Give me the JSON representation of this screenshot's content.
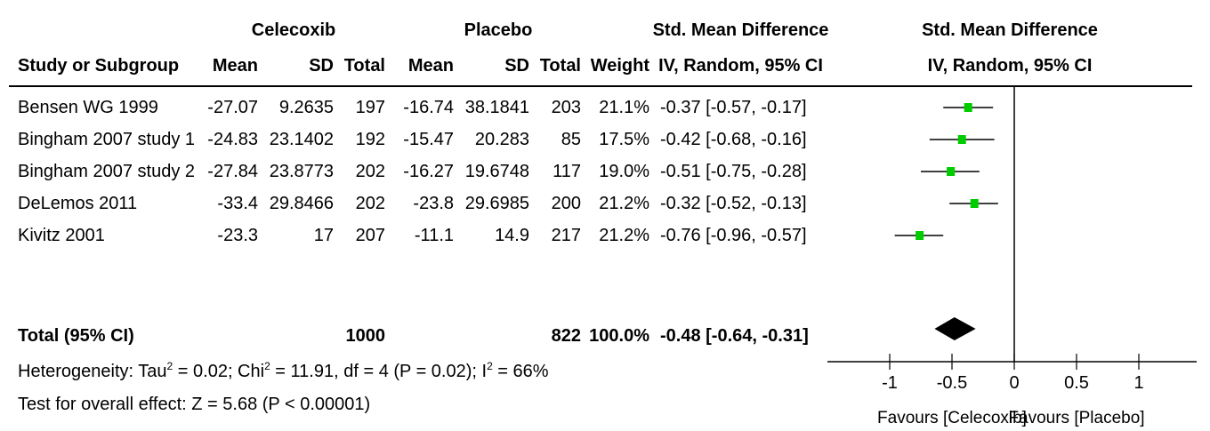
{
  "headers": {
    "group1": "Celecoxib",
    "group2": "Placebo",
    "smd_group": "Std. Mean Difference",
    "study_col": "Study or Subgroup",
    "mean": "Mean",
    "sd": "SD",
    "total": "Total",
    "weight": "Weight",
    "ci_col": "IV, Random, 95% CI",
    "plot_title": "Std. Mean Difference",
    "plot_sub": "IV, Random, 95% CI"
  },
  "studies": [
    {
      "name": "Bensen WG 1999",
      "m1": "-27.07",
      "sd1": "9.2635",
      "n1": "197",
      "m2": "-16.74",
      "sd2": "38.1841",
      "n2": "203",
      "weight": "21.1%",
      "ci": "-0.37 [-0.57, -0.17]"
    },
    {
      "name": "Bingham 2007 study 1",
      "m1": "-24.83",
      "sd1": "23.1402",
      "n1": "192",
      "m2": "-15.47",
      "sd2": "20.283",
      "n2": "85",
      "weight": "17.5%",
      "ci": "-0.42 [-0.68, -0.16]"
    },
    {
      "name": "Bingham 2007 study 2",
      "m1": "-27.84",
      "sd1": "23.8773",
      "n1": "202",
      "m2": "-16.27",
      "sd2": "19.6748",
      "n2": "117",
      "weight": "19.0%",
      "ci": "-0.51 [-0.75, -0.28]"
    },
    {
      "name": "DeLemos 2011",
      "m1": "-33.4",
      "sd1": "29.8466",
      "n1": "202",
      "m2": "-23.8",
      "sd2": "29.6985",
      "n2": "200",
      "weight": "21.2%",
      "ci": "-0.32 [-0.52, -0.13]"
    },
    {
      "name": "Kivitz 2001",
      "m1": "-23.3",
      "sd1": "17",
      "n1": "207",
      "m2": "-11.1",
      "sd2": "14.9",
      "n2": "217",
      "weight": "21.2%",
      "ci": "-0.76 [-0.96, -0.57]"
    }
  ],
  "total": {
    "label": "Total (95% CI)",
    "n1": "1000",
    "n2": "822",
    "weight": "100.0%",
    "ci": "-0.48 [-0.64, -0.31]"
  },
  "footer": {
    "heterogeneity_prefix": "Heterogeneity: Tau",
    "tau_sup": "2",
    "heterogeneity_mid": " = 0.02; Chi",
    "chi_sup": "2",
    "heterogeneity_mid2": " = 11.91, df = 4 (P = 0.02); I",
    "i_sup": "2",
    "heterogeneity_end": " = 66%",
    "overall": "Test for overall effect: Z = 5.68 (P < 0.00001)"
  },
  "chart_data": {
    "type": "scatter",
    "estimates": [
      {
        "est": -0.37,
        "lo": -0.57,
        "hi": -0.17
      },
      {
        "est": -0.42,
        "lo": -0.68,
        "hi": -0.16
      },
      {
        "est": -0.51,
        "lo": -0.75,
        "hi": -0.28
      },
      {
        "est": -0.32,
        "lo": -0.52,
        "hi": -0.13
      },
      {
        "est": -0.76,
        "lo": -0.96,
        "hi": -0.57
      }
    ],
    "pooled": {
      "est": -0.48,
      "lo": -0.64,
      "hi": -0.31
    },
    "xlim": [
      -1,
      1
    ],
    "ticks": [
      "-1",
      "-0.5",
      "0",
      "0.5",
      "1"
    ],
    "tick_values": [
      -1,
      -0.5,
      0,
      0.5,
      1
    ],
    "left_label": "Favours [Celecoxib]",
    "right_label": "Favours [Placebo]",
    "marker_color": "#00cc00"
  }
}
